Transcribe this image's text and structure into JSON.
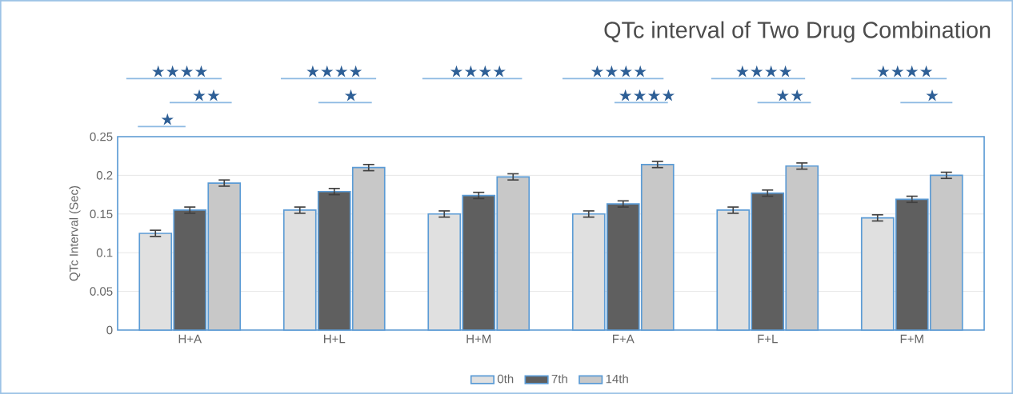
{
  "chart_data": {
    "type": "bar",
    "title": "QTc  interval  of Two  Drug  Combination",
    "ylabel": "QTc Interval  (Sec)",
    "categories": [
      "H+A",
      "H+L",
      "H+M",
      "F+A",
      "F+L",
      "F+M"
    ],
    "series": [
      {
        "name": "0th",
        "color": "#e0e0e0",
        "values": [
          0.125,
          0.155,
          0.15,
          0.15,
          0.155,
          0.145
        ],
        "errors": [
          0.004,
          0.004,
          0.004,
          0.004,
          0.004,
          0.004
        ]
      },
      {
        "name": "7th",
        "color": "#5f5f5f",
        "values": [
          0.155,
          0.179,
          0.174,
          0.163,
          0.177,
          0.169
        ],
        "errors": [
          0.004,
          0.004,
          0.004,
          0.004,
          0.004,
          0.004
        ]
      },
      {
        "name": "14th",
        "color": "#c8c8c8",
        "values": [
          0.19,
          0.21,
          0.198,
          0.214,
          0.212,
          0.2
        ],
        "errors": [
          0.004,
          0.004,
          0.004,
          0.004,
          0.004,
          0.004
        ]
      }
    ],
    "ylim": [
      0,
      0.25
    ],
    "yticks": [
      0,
      0.05,
      0.1,
      0.15,
      0.2,
      0.25
    ],
    "grid": "y",
    "legend": "bottom",
    "annotations": [
      "★★★★",
      "★★",
      "★",
      "★★★★",
      "★",
      "★★★★",
      "★★★★",
      "★★★★",
      "★★★★",
      "★★",
      "★★★★",
      "★"
    ]
  }
}
